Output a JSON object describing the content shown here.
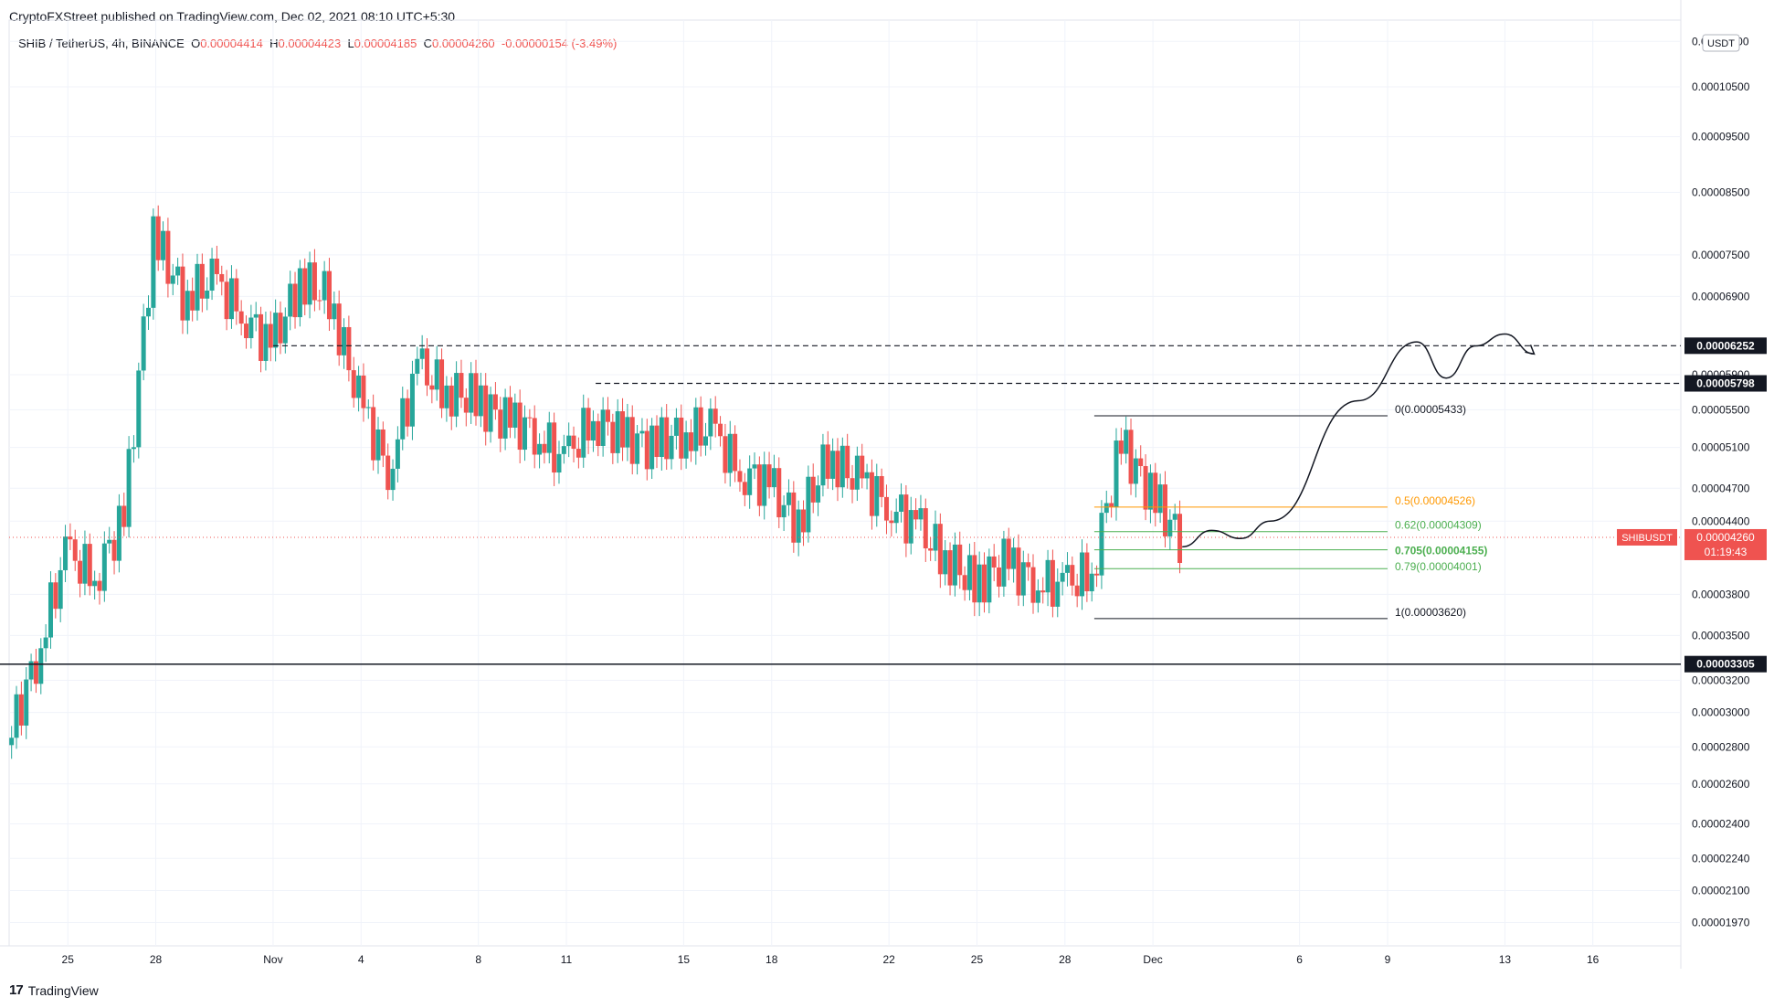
{
  "header": {
    "published": "CryptoFXStreet published on TradingView.com, Dec 02, 2021 08:10 UTC+5:30"
  },
  "legend": {
    "symbol": "SHIB / TetherUS, 4h, BINANCE",
    "o_label": "O",
    "o_value": "0.00004414",
    "h_label": "H",
    "h_value": "0.00004423",
    "l_label": "L",
    "l_value": "0.00004185",
    "c_label": "C",
    "c_value": "0.00004260",
    "change": "-0.00000154 (-3.49%)"
  },
  "footer": {
    "brand": "TradingView",
    "logo": "17"
  },
  "colors": {
    "up": "#26a69a",
    "down": "#ef5350",
    "grid": "#f0f3fa",
    "fib_05": "#ff9800",
    "fib_062": "#4caf50",
    "fib_079": "#4caf50",
    "fib_line": "#131722"
  },
  "chart_data": {
    "type": "candlestick",
    "symbol": "SHIBUSDT",
    "timeframe": "4h",
    "exchange": "BINANCE",
    "currency_label": "USDT",
    "y_scale": "log",
    "ylim": [
      1.88e-05,
      1.2e-05
    ],
    "y_ticks": [
      "0.00011500",
      "0.00010500",
      "0.00009500",
      "0.00008500",
      "0.00007500",
      "0.00006900",
      "0.00005900",
      "0.00005500",
      "0.00005100",
      "0.00004700",
      "0.00004400",
      "0.00003800",
      "0.00003500",
      "0.00003200",
      "0.00003000",
      "0.00002800",
      "0.00002600",
      "0.00002400",
      "0.00002240",
      "0.00002100",
      "0.00001970"
    ],
    "x_ticks": [
      "25",
      "28",
      "Nov",
      "4",
      "8",
      "11",
      "15",
      "18",
      "22",
      "25",
      "28",
      "Dec",
      "6",
      "9",
      "13",
      "16"
    ],
    "x_tick_dates": [
      "2021-10-25",
      "2021-10-28",
      "2021-11-01",
      "2021-11-04",
      "2021-11-08",
      "2021-11-11",
      "2021-11-15",
      "2021-11-18",
      "2021-11-22",
      "2021-11-25",
      "2021-11-28",
      "2021-12-01",
      "2021-12-06",
      "2021-12-09",
      "2021-12-13",
      "2021-12-16"
    ],
    "x_range": [
      "2021-10-23",
      "2021-12-19"
    ],
    "close_series": [
      [
        "2021-10-23",
        2.81e-05
      ],
      [
        "2021-10-24",
        3.34e-05
      ],
      [
        "2021-10-25",
        4.12e-05
      ],
      [
        "2021-10-26",
        3.95e-05
      ],
      [
        "2021-10-27",
        4.42e-05
      ],
      [
        "2021-10-28",
        7.8e-05
      ],
      [
        "2021-10-29",
        6.92e-05
      ],
      [
        "2021-10-30",
        7.12e-05
      ],
      [
        "2021-10-31",
        6.72e-05
      ],
      [
        "2021-11-01",
        6.22e-05
      ],
      [
        "2021-11-02",
        7.12e-05
      ],
      [
        "2021-11-03",
        6.9e-05
      ],
      [
        "2021-11-04",
        5.61e-05
      ],
      [
        "2021-11-05",
        4.88e-05
      ],
      [
        "2021-11-06",
        5.98e-05
      ],
      [
        "2021-11-07",
        5.72e-05
      ],
      [
        "2021-11-08",
        5.62e-05
      ],
      [
        "2021-11-09",
        5.38e-05
      ],
      [
        "2021-11-10",
        5.28e-05
      ],
      [
        "2021-11-11",
        4.95e-05
      ],
      [
        "2021-11-12",
        5.42e-05
      ],
      [
        "2021-11-13",
        5.2e-05
      ],
      [
        "2021-11-14",
        5.12e-05
      ],
      [
        "2021-11-15",
        5.25e-05
      ],
      [
        "2021-11-16",
        5.28e-05
      ],
      [
        "2021-11-17",
        4.88e-05
      ],
      [
        "2021-11-18",
        4.72e-05
      ],
      [
        "2021-11-19",
        4.38e-05
      ],
      [
        "2021-11-20",
        5.02e-05
      ],
      [
        "2021-11-21",
        4.78e-05
      ],
      [
        "2021-11-22",
        4.58e-05
      ],
      [
        "2021-11-23",
        4.35e-05
      ],
      [
        "2021-11-24",
        4.1e-05
      ],
      [
        "2021-11-25",
        3.88e-05
      ],
      [
        "2021-11-26",
        4.05e-05
      ],
      [
        "2021-11-27",
        3.92e-05
      ],
      [
        "2021-11-28",
        3.85e-05
      ],
      [
        "2021-11-29",
        3.98e-05
      ],
      [
        "2021-11-30",
        5.15e-05
      ],
      [
        "2021-12-01",
        4.65e-05
      ],
      [
        "2021-12-02",
        4.26e-05
      ]
    ],
    "last_price": {
      "symbol": "SHIBUSDT",
      "value": "0.00004260",
      "countdown": "01:19:43"
    },
    "horizontal_levels": [
      {
        "value": 6.252e-05,
        "label": "0.00006252",
        "style": "dashed"
      },
      {
        "value": 5.798e-05,
        "label": "0.00005798",
        "style": "dashed"
      },
      {
        "value": 3.305e-05,
        "label": "0.00003305",
        "style": "solid"
      }
    ],
    "fibonacci": [
      {
        "ratio": "0",
        "value": 5.433e-05,
        "label": "0(0.00005433)"
      },
      {
        "ratio": "0.5",
        "value": 4.526e-05,
        "label": "0.5(0.00004526)"
      },
      {
        "ratio": "0.62",
        "value": 4.309e-05,
        "label": "0.62(0.00004309)"
      },
      {
        "ratio": "0.705",
        "value": 4.155e-05,
        "label": "0.705(0.00004155)"
      },
      {
        "ratio": "0.79",
        "value": 4.001e-05,
        "label": "0.79(0.00004001)"
      },
      {
        "ratio": "1",
        "value": 3.62e-05,
        "label": "1(0.00003620)"
      }
    ],
    "projection_path": [
      [
        "2021-12-02",
        4.18e-05
      ],
      [
        "2021-12-03",
        4.32e-05
      ],
      [
        "2021-12-04",
        4.25e-05
      ],
      [
        "2021-12-05",
        4.4e-05
      ],
      [
        "2021-12-08",
        5.6e-05
      ],
      [
        "2021-12-10",
        6.3e-05
      ],
      [
        "2021-12-11",
        5.86e-05
      ],
      [
        "2021-12-12",
        6.25e-05
      ],
      [
        "2021-12-13",
        6.4e-05
      ],
      [
        "2021-12-14",
        6.15e-05
      ]
    ]
  }
}
